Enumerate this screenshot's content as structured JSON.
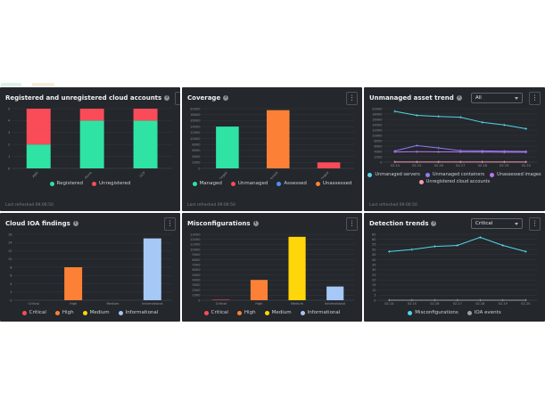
{
  "page": {
    "background": "#ffffff",
    "panel_bg": "#24272c"
  },
  "colors": {
    "green": "#2fe3a5",
    "red": "#fa4b59",
    "orange": "#fc8136",
    "yellow": "#ffd60a",
    "light_blue": "#a6c8f7",
    "blue": "#4f8ff7",
    "cyan": "#52d6ea",
    "purple": "#8a80f2",
    "violet": "#bd73ee",
    "pink": "#f79bb0",
    "gray": "#9aa0a6"
  },
  "panels": [
    {
      "title": "Registered and unregistered cloud accounts",
      "footer": "Last refreshed 09:06:50",
      "menu_icon": "kebab"
    },
    {
      "title": "Coverage",
      "footer": "Last refreshed 09:06:50",
      "menu_icon": "kebab"
    },
    {
      "title": "Unmanaged asset trend",
      "dropdown": "All",
      "footer": "Last refreshed 09:06:50",
      "menu_icon": "kebab"
    },
    {
      "title": "Cloud IOA findings",
      "menu_icon": "kebab"
    },
    {
      "title": "Misconfigurations",
      "menu_icon": "kebab"
    },
    {
      "title": "Detection trends",
      "dropdown": "Critical",
      "menu_icon": "kebab"
    }
  ],
  "chart_data": [
    {
      "type": "bar",
      "stacked": true,
      "title": "Registered and unregistered cloud accounts",
      "categories": [
        "AWS",
        "Azure",
        "GCP"
      ],
      "rotate_xlabels": true,
      "series": [
        {
          "name": "Registered",
          "color": "#2fe3a5",
          "values": [
            2,
            4,
            4
          ]
        },
        {
          "name": "Unregistered",
          "color": "#fa4b59",
          "values": [
            3,
            1,
            1
          ]
        }
      ],
      "ylim": [
        0,
        5
      ],
      "ytick": 1,
      "grid": true,
      "legend_position": "bottom",
      "legend": [
        {
          "label": "Registered",
          "color": "#2fe3a5"
        },
        {
          "label": "Unregistered",
          "color": "#fa4b59"
        }
      ]
    },
    {
      "type": "bar",
      "stacked": false,
      "title": "Coverage",
      "categories": [
        "Managed",
        "Unassessed",
        "Unmanaged"
      ],
      "rotate_xlabels": true,
      "values": [
        14000,
        19500,
        2000
      ],
      "bar_colors": [
        "#2fe3a5",
        "#fc8136",
        "#fa4b59"
      ],
      "ylim": [
        0,
        20000
      ],
      "ytick": 2000,
      "grid": true,
      "legend_position": "bottom",
      "legend": [
        {
          "label": "Managed",
          "color": "#2fe3a5"
        },
        {
          "label": "Unmanaged",
          "color": "#fa4b59"
        },
        {
          "label": "Assessed",
          "color": "#4f8ff7"
        },
        {
          "label": "Unassessed",
          "color": "#fc8136"
        }
      ]
    },
    {
      "type": "line",
      "title": "Unmanaged asset trend",
      "x": [
        "02-14",
        "02-15",
        "02-16",
        "02-17",
        "02-18",
        "02-19",
        "02-20"
      ],
      "series": [
        {
          "name": "Unmanaged servers",
          "color": "#52d6ea",
          "values": [
            19000,
            17500,
            17100,
            16800,
            14900,
            13900,
            12500
          ]
        },
        {
          "name": "Unmanaged containers",
          "color": "#8a80f2",
          "values": [
            4200,
            6200,
            5300,
            4300,
            4200,
            4100,
            4000
          ]
        },
        {
          "name": "Unassessed images",
          "color": "#bd73ee",
          "values": [
            3800,
            3900,
            3850,
            3800,
            3750,
            3700,
            3700
          ]
        },
        {
          "name": "Unregistered cloud accounts",
          "color": "#f79bb0",
          "values": [
            60,
            60,
            60,
            60,
            60,
            60,
            60
          ]
        }
      ],
      "ylim": [
        0,
        20000
      ],
      "ytick": 2000,
      "grid": true,
      "legend_position": "bottom",
      "legend_rows": [
        [
          0,
          1,
          2
        ],
        [
          3
        ]
      ],
      "legend": [
        {
          "label": "Unmanaged servers",
          "color": "#52d6ea"
        },
        {
          "label": "Unmanaged containers",
          "color": "#8a80f2"
        },
        {
          "label": "Unassessed images",
          "color": "#bd73ee"
        },
        {
          "label": "Unregistered cloud accounts",
          "color": "#f79bb0"
        }
      ]
    },
    {
      "type": "bar",
      "stacked": false,
      "title": "Cloud IOA findings",
      "categories": [
        "Critical",
        "High",
        "Medium",
        "Informational"
      ],
      "rotate_xlabels": false,
      "values": [
        0,
        8,
        0,
        15
      ],
      "bar_colors": [
        "#fa4b59",
        "#fc8136",
        "#ffd60a",
        "#a6c8f7"
      ],
      "ylim": [
        0,
        16
      ],
      "ytick": 2,
      "grid": true,
      "legend_position": "bottom",
      "legend": [
        {
          "label": "Critical",
          "color": "#fa4b59"
        },
        {
          "label": "High",
          "color": "#fc8136"
        },
        {
          "label": "Medium",
          "color": "#ffd60a"
        },
        {
          "label": "Informational",
          "color": "#a6c8f7"
        }
      ]
    },
    {
      "type": "bar",
      "stacked": false,
      "title": "Misconfigurations",
      "categories": [
        "Critical",
        "High",
        "Medium",
        "Informational"
      ],
      "rotate_xlabels": false,
      "values": [
        100,
        4000,
        12500,
        2700
      ],
      "bar_colors": [
        "#fa4b59",
        "#fc8136",
        "#ffd60a",
        "#a6c8f7"
      ],
      "ylim": [
        0,
        13000
      ],
      "ytick": 1000,
      "grid": true,
      "legend_position": "bottom",
      "legend": [
        {
          "label": "Critical",
          "color": "#fa4b59"
        },
        {
          "label": "High",
          "color": "#fc8136"
        },
        {
          "label": "Medium",
          "color": "#ffd60a"
        },
        {
          "label": "Informational",
          "color": "#a6c8f7"
        }
      ]
    },
    {
      "type": "line",
      "title": "Detection trends",
      "x": [
        "02-14",
        "02-15",
        "02-16",
        "02-17",
        "02-18",
        "02-19",
        "02-20"
      ],
      "series": [
        {
          "name": "Misconfigurations",
          "color": "#52d6ea",
          "values": [
            48,
            50,
            53,
            54,
            62,
            54,
            48
          ]
        },
        {
          "name": "IOA events",
          "color": "#9aa0a6",
          "values": [
            0,
            0,
            0,
            0,
            0,
            0,
            0
          ]
        }
      ],
      "ylim": [
        0,
        65
      ],
      "ytick": 5,
      "grid": true,
      "legend_position": "bottom",
      "legend": [
        {
          "label": "Misconfigurations",
          "color": "#52d6ea"
        },
        {
          "label": "IOA events",
          "color": "#9aa0a6"
        }
      ]
    }
  ]
}
